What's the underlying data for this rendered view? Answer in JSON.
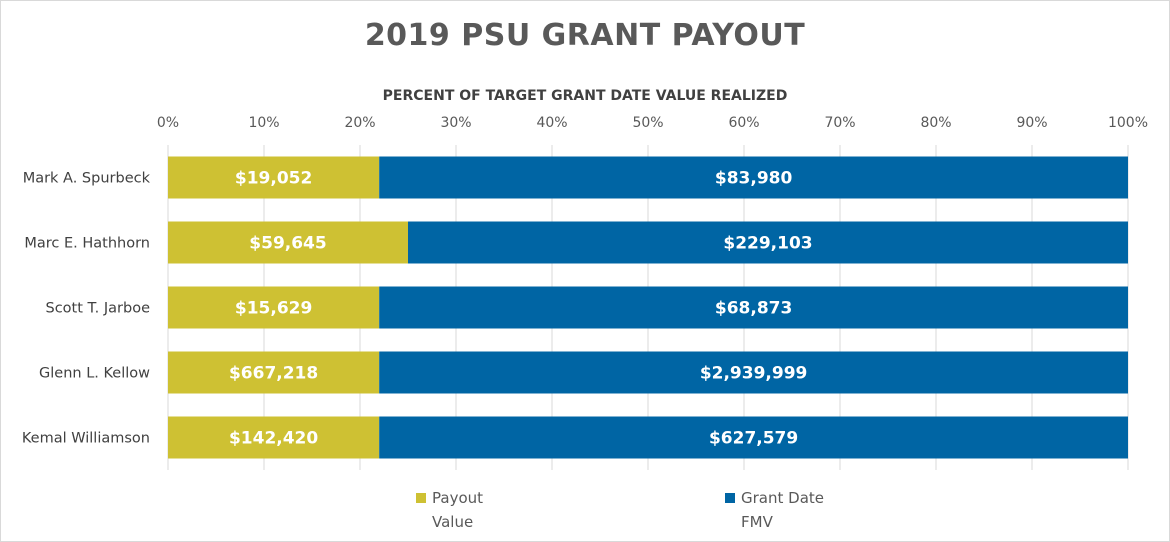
{
  "chart_data": {
    "type": "bar",
    "orientation": "horizontal",
    "stacked": true,
    "title": "2019 PSU GRANT PAYOUT",
    "xlabel": "PERCENT OF TARGET GRANT DATE VALUE REALIZED",
    "ylabel": "",
    "xlim": [
      0,
      100
    ],
    "x_ticks": [
      "0%",
      "10%",
      "20%",
      "30%",
      "40%",
      "50%",
      "60%",
      "70%",
      "80%",
      "90%",
      "100%"
    ],
    "grid": true,
    "legend_position": "bottom",
    "categories": [
      "Mark A. Spurbeck",
      "Marc E. Hathhorn",
      "Scott T. Jarboe",
      "Glenn L. Kellow",
      "Kemal Williamson"
    ],
    "series": [
      {
        "name": "Payout Value",
        "color": "#cec133",
        "values": [
          22,
          25,
          22,
          22,
          22
        ],
        "labels": [
          "$19,052",
          "$59,645",
          "$15,629",
          "$667,218",
          "$142,420"
        ]
      },
      {
        "name": "Grant Date FMV",
        "color": "#0065a4",
        "values": [
          78,
          75,
          78,
          78,
          78
        ],
        "labels": [
          "$83,980",
          "$229,103",
          "$68,873",
          "$2,939,999",
          "$627,579"
        ]
      }
    ]
  }
}
